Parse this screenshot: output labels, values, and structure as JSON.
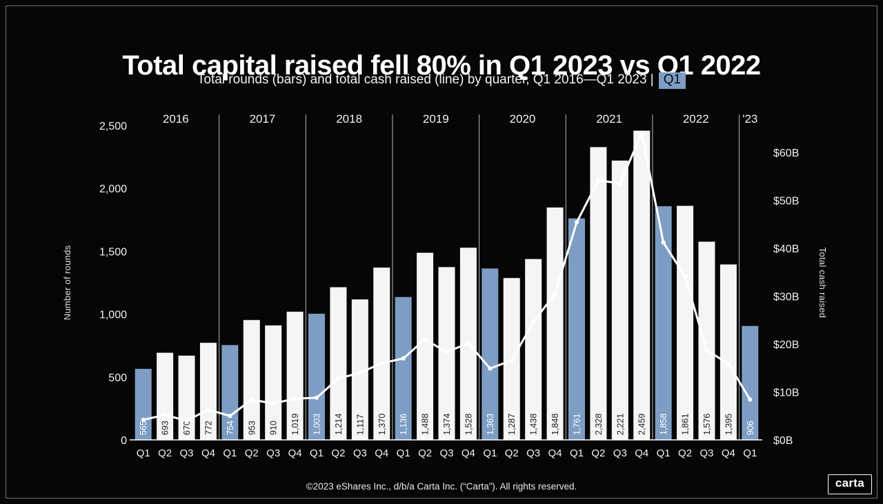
{
  "slide": {
    "title": "Total capital raised fell 80% in Q1 2023 vs Q1 2022",
    "subtitle": "Total rounds (bars) and total cash raised (line) by quarter, Q1 2016—Q1 2023 |",
    "subtitle_chip": "Q1",
    "footer": "©2023 eShares Inc., d/b/a Carta Inc. (“Carta”). All rights reserved.",
    "logo": "carta"
  },
  "chart_data": {
    "type": "combo-bar-line",
    "categories": [
      "Q1",
      "Q2",
      "Q3",
      "Q4",
      "Q1",
      "Q2",
      "Q3",
      "Q4",
      "Q1",
      "Q2",
      "Q3",
      "Q4",
      "Q1",
      "Q2",
      "Q3",
      "Q4",
      "Q1",
      "Q2",
      "Q3",
      "Q4",
      "Q1",
      "Q2",
      "Q3",
      "Q4",
      "Q1",
      "Q2",
      "Q3",
      "Q4",
      "Q1"
    ],
    "year_groups": [
      {
        "label": "2016",
        "count": 4
      },
      {
        "label": "2017",
        "count": 4
      },
      {
        "label": "2018",
        "count": 4
      },
      {
        "label": "2019",
        "count": 4
      },
      {
        "label": "2020",
        "count": 4
      },
      {
        "label": "2021",
        "count": 4
      },
      {
        "label": "2022",
        "count": 4
      },
      {
        "label": "'23",
        "count": 1
      }
    ],
    "bars": {
      "name": "Total rounds",
      "values": [
        565,
        693,
        670,
        772,
        754,
        953,
        910,
        1019,
        1003,
        1214,
        1117,
        1370,
        1136,
        1488,
        1374,
        1528,
        1363,
        1287,
        1438,
        1848,
        1761,
        2328,
        2221,
        2459,
        1858,
        1861,
        1576,
        1395,
        906
      ],
      "labels": [
        "565",
        "693",
        "670",
        "772",
        "754",
        "953",
        "910",
        "1,019",
        "1,003",
        "1,214",
        "1,117",
        "1,370",
        "1,136",
        "1,488",
        "1,374",
        "1,528",
        "1,363",
        "1,287",
        "1,438",
        "1,848",
        "1,761",
        "2,328",
        "2,221",
        "2,459",
        "1,858",
        "1,861",
        "1,576",
        "1,395",
        "906"
      ],
      "highlighted_indices": [
        0,
        4,
        8,
        12,
        16,
        20,
        24,
        28
      ],
      "bar_color": "#f5f5f5",
      "highlight_color": "#7d9dc4"
    },
    "line": {
      "name": "Total cash raised ($B)",
      "values": [
        4.2,
        5.2,
        4,
        6.3,
        5,
        8.4,
        7.6,
        8.6,
        8.8,
        12.8,
        14,
        16,
        17,
        21,
        18.3,
        20.2,
        14.9,
        16.6,
        24.6,
        30.5,
        45.4,
        54.2,
        53.5,
        64,
        41.2,
        34.1,
        18.7,
        15.9,
        8.4
      ],
      "color": "#ffffff"
    },
    "left_axis": {
      "label": "Number of rounds",
      "ticks": [
        0,
        500,
        1000,
        1500,
        2000,
        2500
      ],
      "tick_labels": [
        "0",
        "500",
        "1,000",
        "1,500",
        "2,000",
        "2,500"
      ],
      "max": 2500
    },
    "right_axis": {
      "label": "Total cash raised",
      "ticks": [
        0,
        10,
        20,
        30,
        40,
        50,
        60
      ],
      "tick_labels": [
        "$0B",
        "$10B",
        "$20B",
        "$30B",
        "$40B",
        "$50B",
        "$60B"
      ],
      "max": 60
    }
  }
}
